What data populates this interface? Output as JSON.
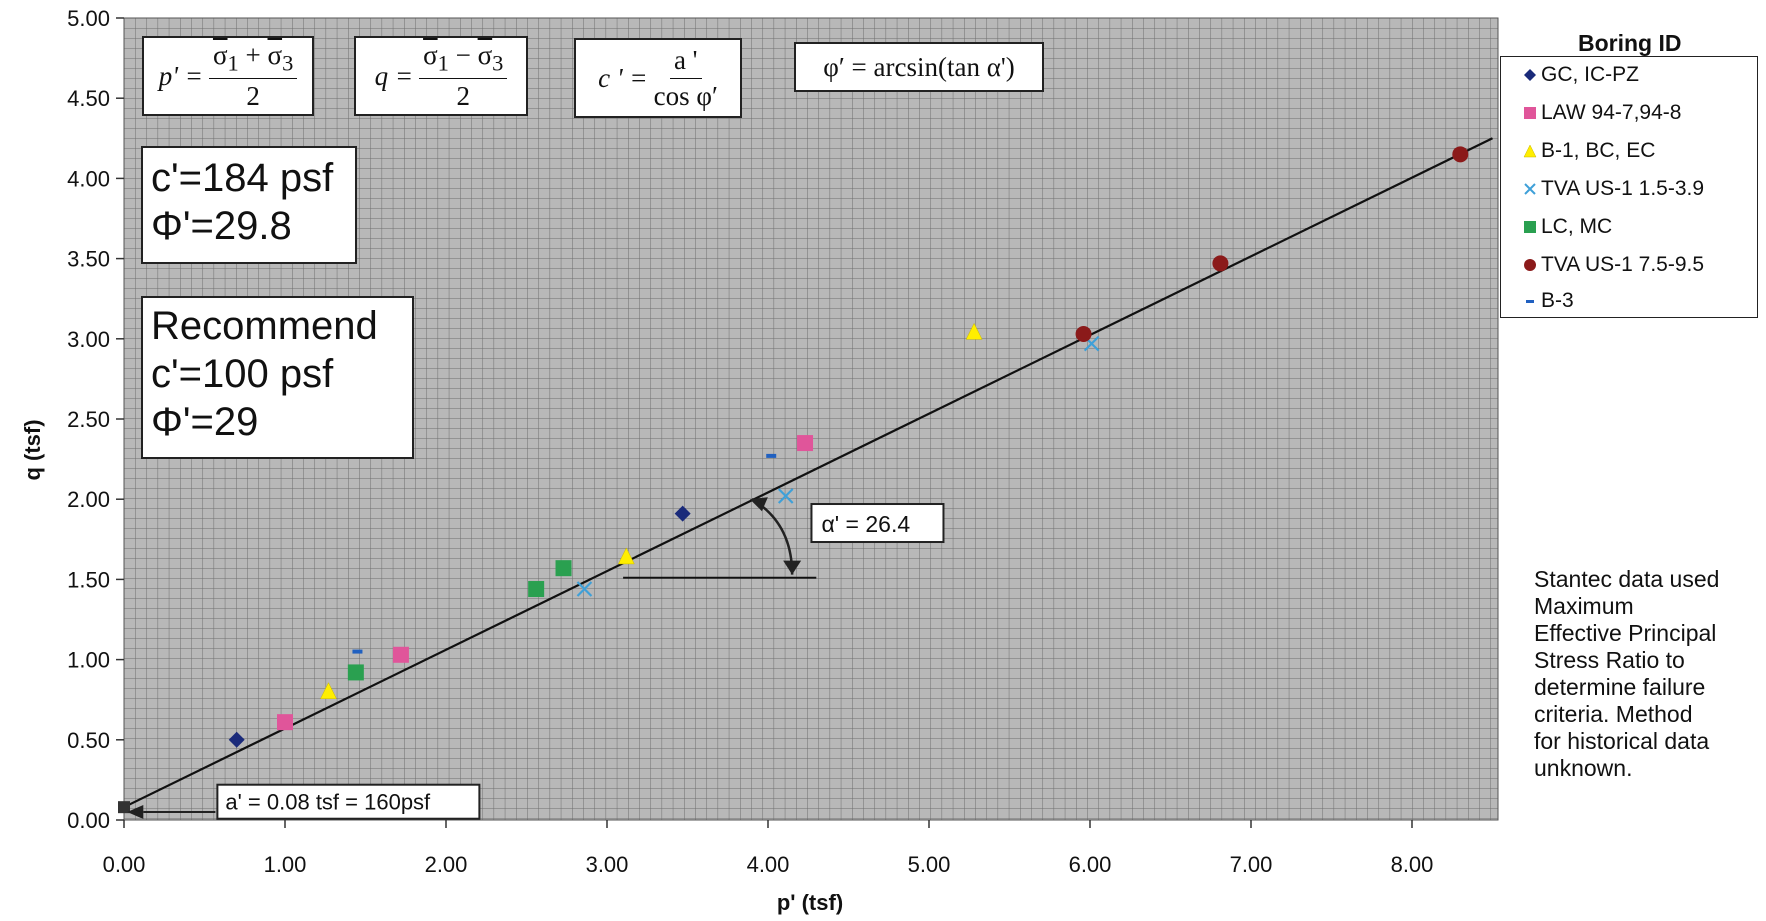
{
  "chart_data": {
    "type": "scatter",
    "xlabel": "p' (tsf)",
    "ylabel": "q (tsf)",
    "xlim": [
      0,
      8.5
    ],
    "ylim": [
      0,
      5
    ],
    "x_ticks": [
      "0.00",
      "1.00",
      "2.00",
      "3.00",
      "4.00",
      "5.00",
      "6.00",
      "7.00",
      "8.00"
    ],
    "y_ticks": [
      "0.00",
      "0.50",
      "1.00",
      "1.50",
      "2.00",
      "2.50",
      "3.00",
      "3.50",
      "4.00",
      "4.50",
      "5.00"
    ],
    "grid": true,
    "legend_title": "Boring ID",
    "legend_position": "right",
    "series": [
      {
        "name": "GC, IC-PZ",
        "marker": "diamond",
        "color": "#1a2a7a",
        "x": [
          0.7,
          3.47
        ],
        "y": [
          0.5,
          1.91
        ]
      },
      {
        "name": "LAW 94-7,94-8",
        "marker": "square",
        "color": "#e0559a",
        "x": [
          1.0,
          1.72,
          4.23
        ],
        "y": [
          0.61,
          1.03,
          2.35
        ]
      },
      {
        "name": "B-1, BC, EC",
        "marker": "triangle",
        "color": "#ffee00",
        "x": [
          1.27,
          3.12,
          5.28
        ],
        "y": [
          0.8,
          1.64,
          3.04
        ]
      },
      {
        "name": "TVA US-1 1.5-3.9",
        "marker": "x",
        "color": "#3fa0d8",
        "x": [
          2.86,
          4.11,
          6.01
        ],
        "y": [
          1.44,
          2.02,
          2.97
        ]
      },
      {
        "name": "LC, MC",
        "marker": "square",
        "color": "#2aa050",
        "x": [
          1.44,
          2.56,
          2.73
        ],
        "y": [
          0.92,
          1.44,
          1.57
        ]
      },
      {
        "name": "TVA US-1 7.5-9.5",
        "marker": "circle",
        "color": "#8b1a1a",
        "x": [
          5.96,
          6.81,
          8.3
        ],
        "y": [
          3.03,
          3.47,
          4.15
        ]
      },
      {
        "name": "B-3",
        "marker": "dash",
        "color": "#2060c0",
        "x": [
          1.45,
          4.02
        ],
        "y": [
          1.05,
          2.27
        ]
      }
    ],
    "fit_line": {
      "x": [
        0.0,
        8.5
      ],
      "y": [
        0.08,
        4.25
      ]
    },
    "origin_point": {
      "x": 0.0,
      "y": 0.08
    },
    "alpha_label": "α' = 26.4",
    "intercept_label": "a' = 0.08 tsf = 160psf"
  },
  "equations": {
    "p_lhs": "p'",
    "p_num_a": "σ",
    "p_sub_a": "1",
    "p_plus": "+",
    "p_num_b": "σ",
    "p_sub_b": "3",
    "p_den": "2",
    "q_lhs": "q",
    "q_num_a": "σ",
    "q_sub_a": "1",
    "q_minus": "−",
    "q_num_b": "σ",
    "q_sub_b": "3",
    "q_den": "2",
    "c_lhs": "c '",
    "c_num": "a '",
    "c_den": "cos  φ′",
    "phi_eq": "φ′ = arcsin(tan  α')"
  },
  "results": {
    "line1": "c'=184 psf",
    "line2": "Φ'=29.8"
  },
  "recommend": {
    "line1": "Recommend",
    "line2": "c'=100 psf",
    "line3": "Φ'=29"
  },
  "note": {
    "line1": "Stantec data used",
    "line2": "Maximum",
    "line3": "Effective Principal",
    "line4": "Stress Ratio to",
    "line5": "determine failure",
    "line6": "criteria.  Method",
    "line7": "for historical data",
    "line8": "unknown."
  }
}
